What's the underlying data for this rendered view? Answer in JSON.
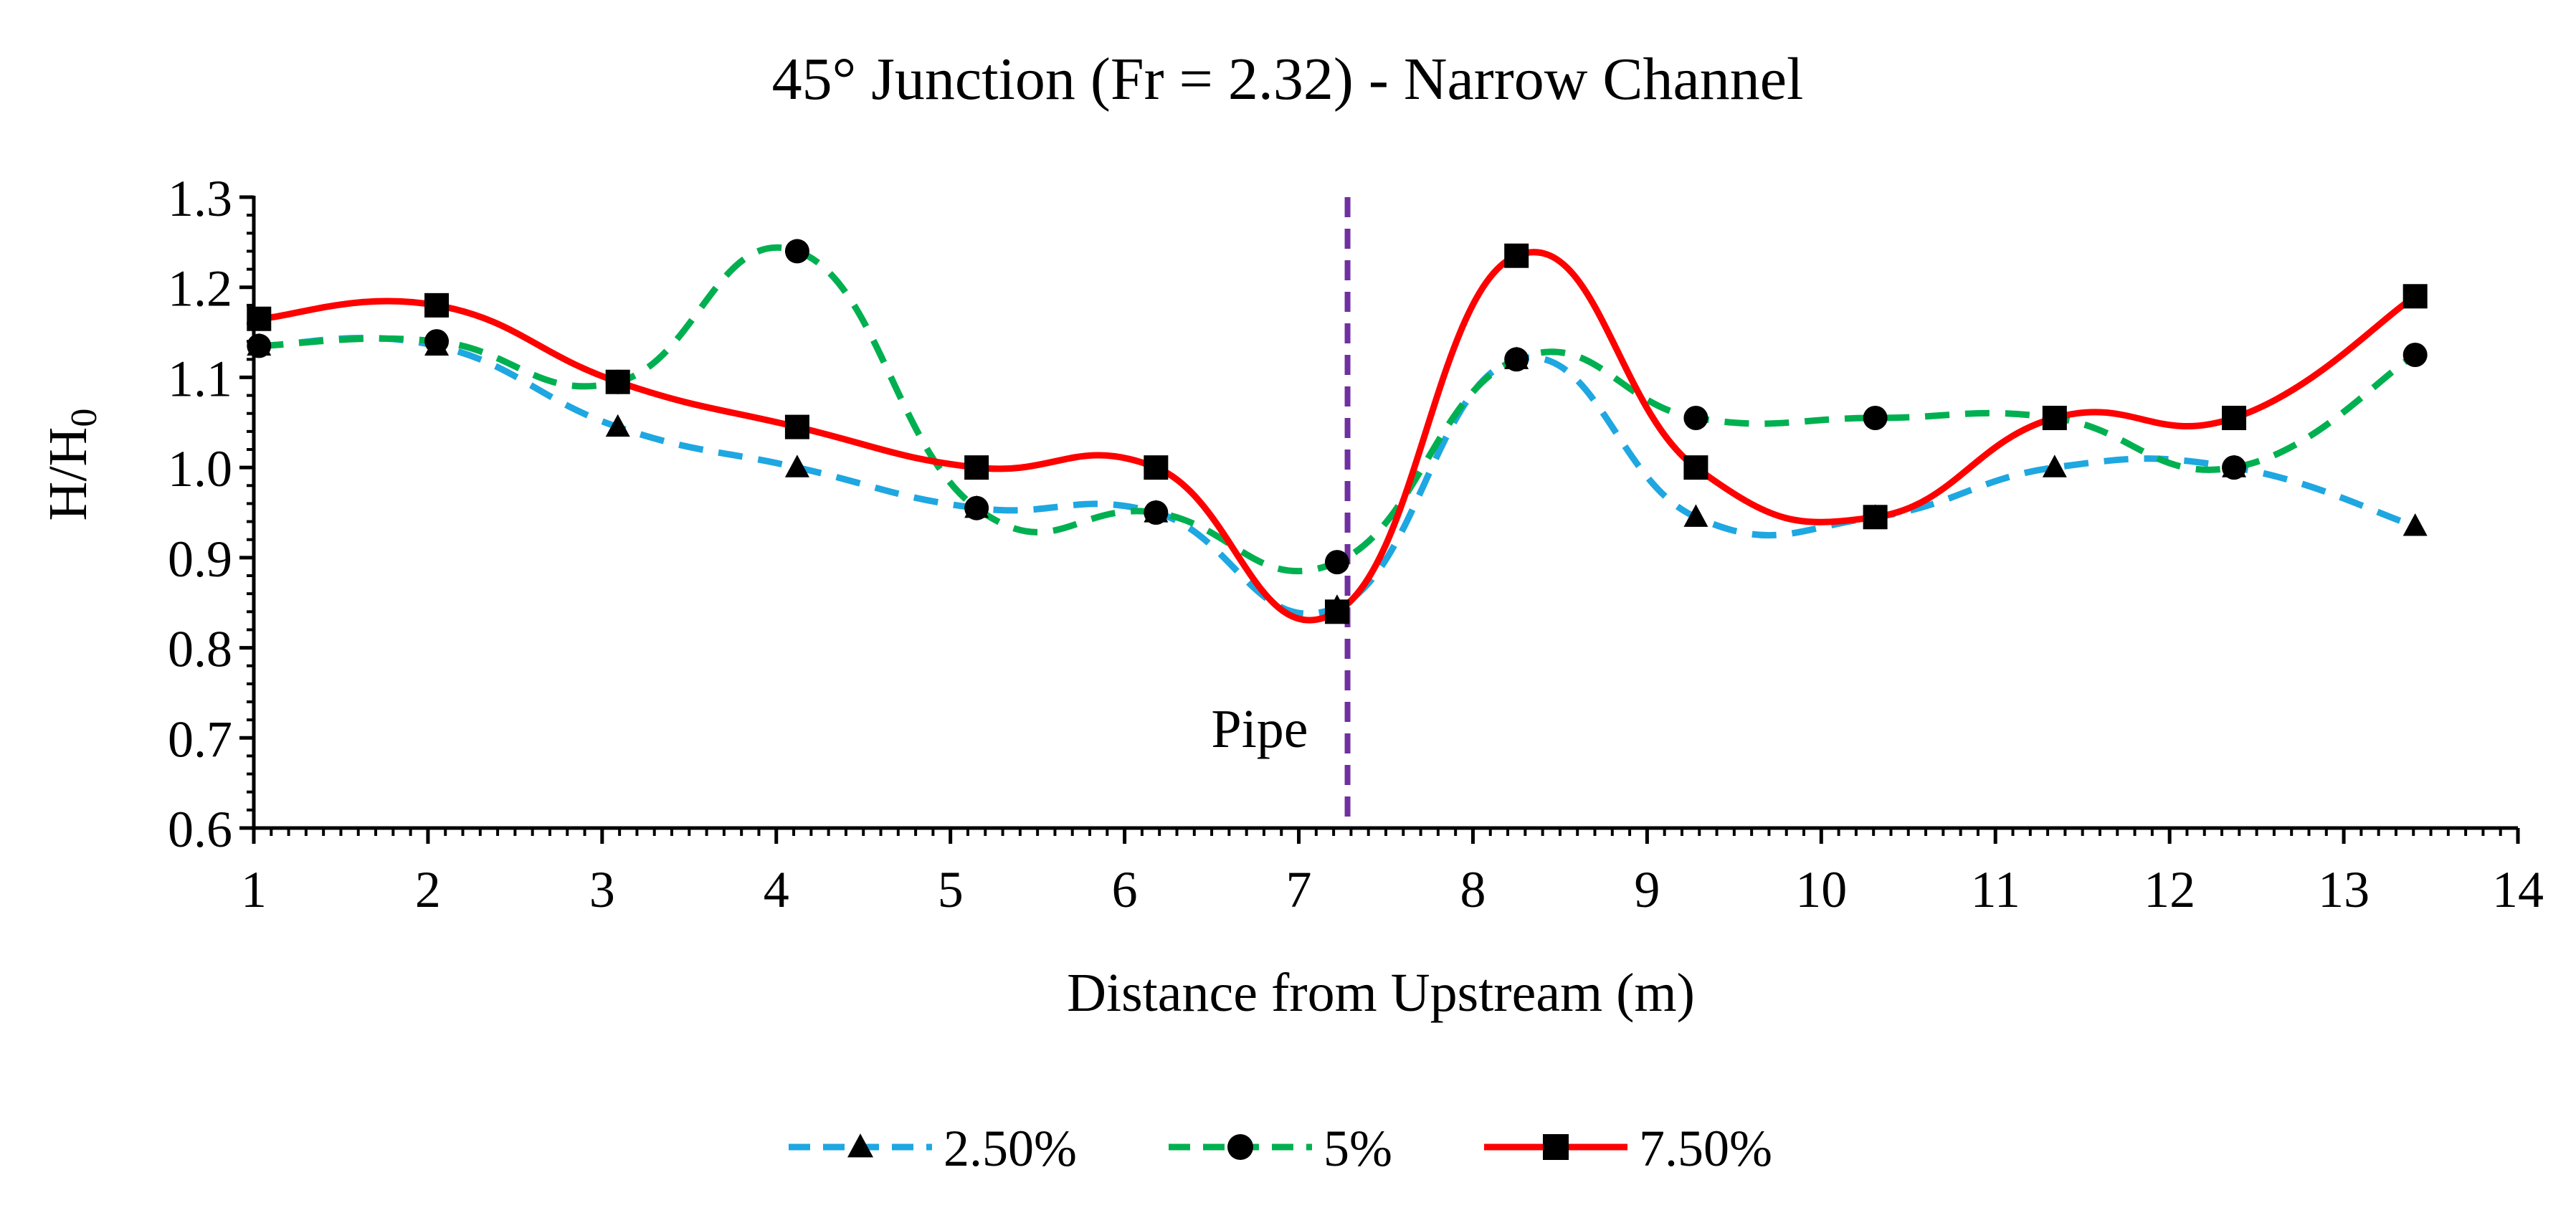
{
  "chart_data": {
    "type": "line",
    "title": "45° Junction (Fr = 2.32) - Narrow Channel",
    "xlabel": "Distance from Upstream (m)",
    "ylabel": {
      "main": "H/H",
      "subscript": "0"
    },
    "xlim": [
      1,
      14
    ],
    "ylim": [
      0.6,
      1.3
    ],
    "x_ticks": [
      1,
      2,
      3,
      4,
      5,
      6,
      7,
      8,
      9,
      10,
      11,
      12,
      13,
      14
    ],
    "x_tick_labels": [
      "1",
      "2",
      "3",
      "4",
      "5",
      "6",
      "7",
      "8",
      "9",
      "10",
      "11",
      "12",
      "13",
      "14"
    ],
    "y_ticks": [
      0.6,
      0.7,
      0.8,
      0.9,
      1.0,
      1.1,
      1.2,
      1.3
    ],
    "y_tick_labels": [
      "0.6",
      "0.7",
      "0.8",
      "0.9",
      "1.0",
      "1.1",
      "1.2",
      "1.3"
    ],
    "grid": false,
    "legend_position": "bottom",
    "reference_line": {
      "x": 7.28,
      "label": "Pipe",
      "color": "#7030a0",
      "style": "dashed"
    },
    "series": [
      {
        "name": "2.50%",
        "color": "#1ea7e1",
        "line_style": "dashed",
        "marker": "triangle",
        "x": [
          1.03,
          2.05,
          3.09,
          4.12,
          5.15,
          6.18,
          7.22,
          8.25,
          9.28,
          10.31,
          11.34,
          12.37,
          13.41
        ],
        "y": [
          1.135,
          1.135,
          1.045,
          1.0,
          0.955,
          0.95,
          0.845,
          1.12,
          0.945,
          0.945,
          1.0,
          1.0,
          0.935
        ]
      },
      {
        "name": "5%",
        "color": "#00b050",
        "line_style": "dashed",
        "marker": "circle",
        "x": [
          1.03,
          2.05,
          3.09,
          4.12,
          5.15,
          6.18,
          7.22,
          8.25,
          9.28,
          10.31,
          11.34,
          12.37,
          13.41
        ],
        "y": [
          1.135,
          1.14,
          1.095,
          1.24,
          0.955,
          0.95,
          0.895,
          1.12,
          1.055,
          1.055,
          1.055,
          1.0,
          1.125
        ]
      },
      {
        "name": "7.50%",
        "color": "#ff0000",
        "line_style": "solid",
        "marker": "square",
        "x": [
          1.03,
          2.05,
          3.09,
          4.12,
          5.15,
          6.18,
          7.22,
          8.25,
          9.28,
          10.31,
          11.34,
          12.37,
          13.41
        ],
        "y": [
          1.165,
          1.18,
          1.095,
          1.045,
          1.0,
          1.0,
          0.84,
          1.235,
          1.0,
          0.945,
          1.055,
          1.055,
          1.19
        ]
      }
    ]
  }
}
